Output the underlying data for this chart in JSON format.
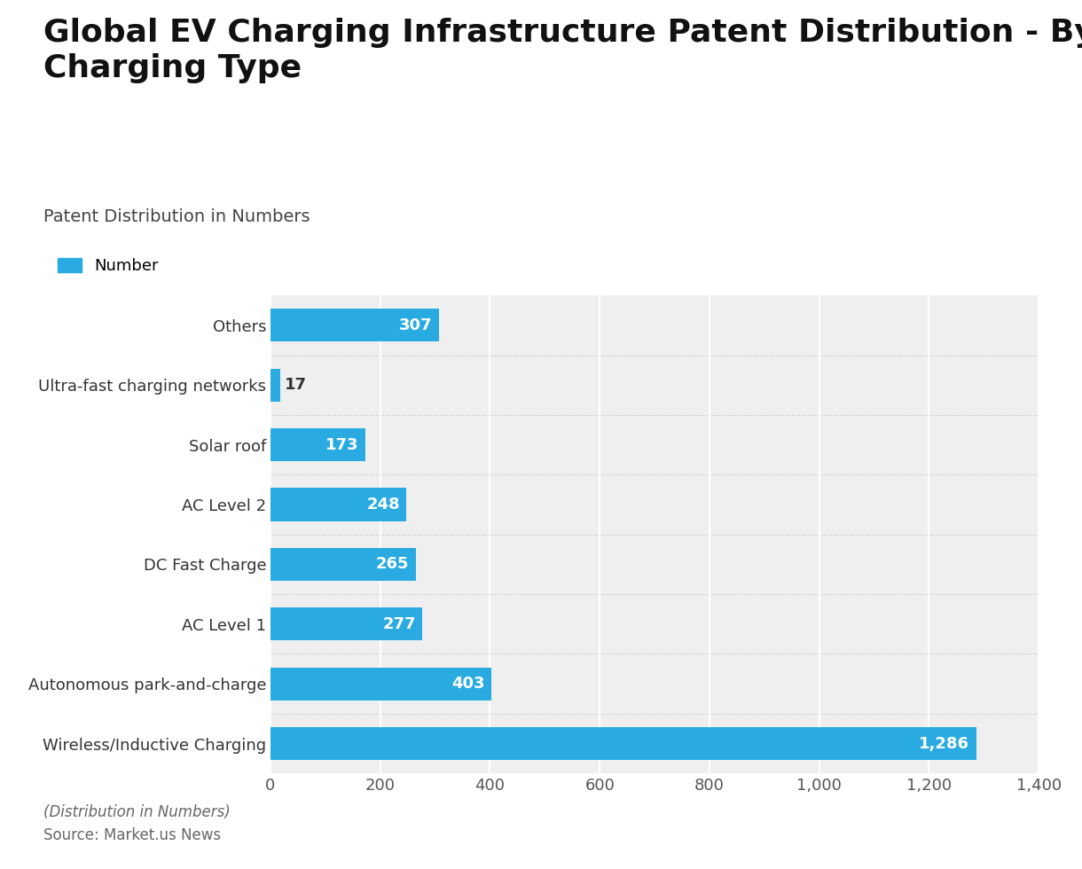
{
  "title": "Global EV Charging Infrastructure Patent Distribution - By\nCharging Type",
  "subtitle": "Patent Distribution in Numbers",
  "legend_label": "Number",
  "categories": [
    "Wireless/Inductive Charging",
    "Autonomous park-and-charge",
    "AC Level 1",
    "DC Fast Charge",
    "AC Level 2",
    "Solar roof",
    "Ultra-fast charging networks",
    "Others"
  ],
  "values": [
    1286,
    403,
    277,
    265,
    248,
    173,
    17,
    307
  ],
  "bar_color": "#29abe2",
  "plot_bg_color": "#efefef",
  "fig_bg_color": "#ffffff",
  "title_color": "#111111",
  "subtitle_color": "#444444",
  "footer_italic": "(Distribution in Numbers)",
  "footer_source": "Source: Market.us News",
  "xlim": [
    0,
    1400
  ],
  "xticks": [
    0,
    200,
    400,
    600,
    800,
    1000,
    1200,
    1400
  ],
  "xtick_labels": [
    "0",
    "200",
    "400",
    "600",
    "800",
    "1,000",
    "1,200",
    "1,400"
  ],
  "bar_height": 0.55,
  "value_label_color": "#ffffff",
  "value_label_color_outside": "#333333",
  "title_fontsize": 26,
  "subtitle_fontsize": 14,
  "legend_fontsize": 13,
  "tick_fontsize": 13,
  "value_fontsize": 13,
  "footer_fontsize": 12,
  "ytick_fontsize": 13
}
